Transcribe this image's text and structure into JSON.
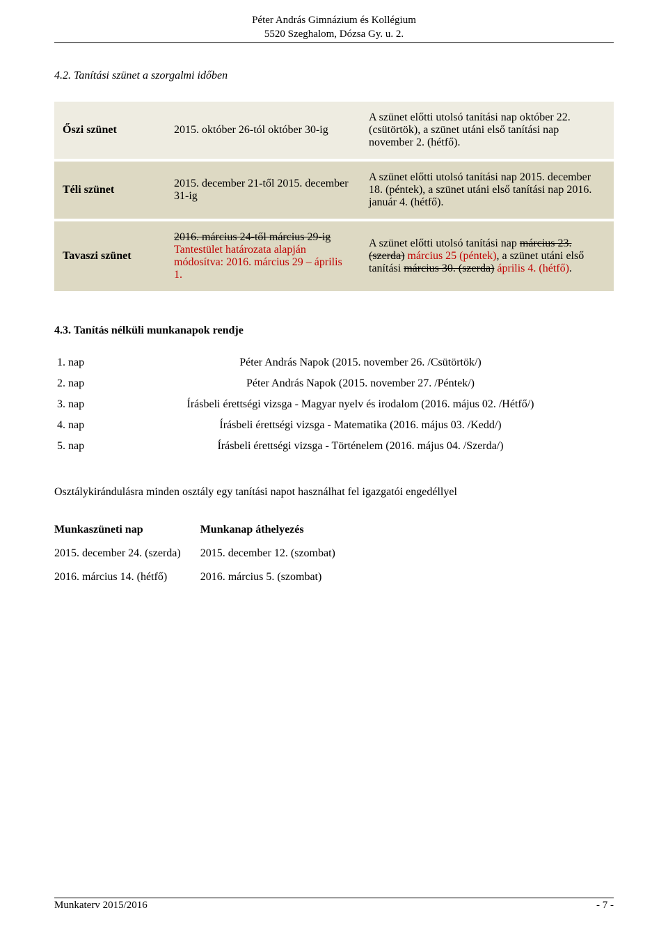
{
  "header": {
    "line1": "Péter András Gimnázium és Kollégium",
    "line2": "5520 Szeghalom, Dózsa Gy. u. 2."
  },
  "section42": {
    "title": "4.2. Tanítási szünet a szorgalmi időben",
    "rows": [
      {
        "label": "Őszi szünet",
        "period": "2015. október 26-tól október 30-ig",
        "desc_plain": "A szünet előtti utolsó tanítási nap október 22. (csütörtök), a szünet utáni első tanítási nap november 2. (hétfő)."
      },
      {
        "label": "Téli szünet",
        "period": "2015. december 21-től 2015. december 31-ig",
        "desc_plain": "A szünet előtti utolsó tanítási nap 2015. december 18. (péntek), a szünet utáni első tanítási nap 2016. január 4. (hétfő)."
      },
      {
        "label": "Tavaszi szünet",
        "period_strike": "2016. március 24-től március 29-ig",
        "period_red_part1": "Tantestület határozata alapján módosítva: ",
        "period_red_part2": "2016. március 29 – április 1.",
        "desc_part1": "A szünet előtti utolsó tanítási  nap ",
        "desc_strike1": "március 23. (szerda)",
        "desc_red1": " március 25 (péntek)",
        "desc_part2": ", a szünet utáni első tanítási ",
        "desc_strike2": "március 30. (szerda)",
        "desc_red2": " április 4. (hétfő)",
        "desc_part3": "."
      }
    ]
  },
  "section43": {
    "title": "4.3. Tanítás nélküli munkanapok rendje",
    "days": [
      {
        "num": "1. nap",
        "desc": "Péter András Napok (2015. november 26. /Csütörtök/)"
      },
      {
        "num": "2. nap",
        "desc": "Péter András Napok (2015. november 27. /Péntek/)"
      },
      {
        "num": "3. nap",
        "desc": "Írásbeli érettségi vizsga - Magyar nyelv és irodalom (2016. május 02. /Hétfő/)"
      },
      {
        "num": "4. nap",
        "desc": "Írásbeli érettségi vizsga - Matematika (2016. május 03. /Kedd/)"
      },
      {
        "num": "5. nap",
        "desc": "Írásbeli érettségi vizsga - Történelem (2016. május 04. /Szerda/)"
      }
    ],
    "note": "Osztálykirándulásra minden osztály egy tanítási napot használhat fel igazgatói engedéllyel",
    "shift": {
      "col1_header": "Munkaszüneti nap",
      "col2_header": "Munkanap áthelyezés",
      "rows": [
        {
          "c1": "2015. december 24. (szerda)",
          "c2": "2015. december 12. (szombat)"
        },
        {
          "c1": "2016. március 14. (hétfő)",
          "c2": "2016. március 5. (szombat)"
        }
      ]
    }
  },
  "footer": {
    "left": "Munkaterv 2015/2016",
    "right": "- 7 -"
  }
}
